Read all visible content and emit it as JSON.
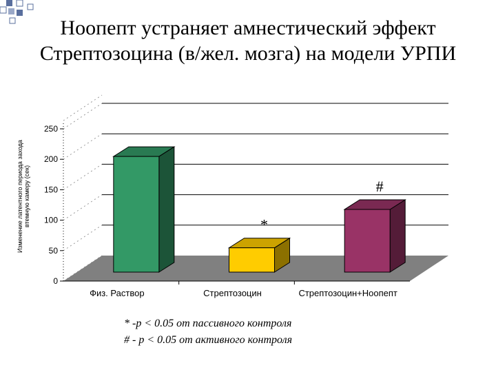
{
  "title_lines": [
    "Ноопепт устраняет амнестический эффект",
    "Стрептозоцина (в/жел. мозга) на модели УРПИ"
  ],
  "footnotes": [
    "* -p < 0.05 от пассивного контроля",
    "# - p < 0.05 от активного контроля"
  ],
  "colors": {
    "bars": [
      "#339966",
      "#ffcc00",
      "#993366"
    ],
    "floor": "#808080",
    "deco": "#5a6f9e"
  },
  "chart_data": {
    "type": "bar",
    "style": "3d",
    "categories": [
      "Физ. Раствор",
      "Стрептозоцин",
      "Стрептозоцин+Ноопепт"
    ],
    "values": [
      225,
      75,
      138
    ],
    "annotations": [
      "",
      "*",
      "#"
    ],
    "ylabel": "Изменение латентного периода захода втемную камеру (сек)",
    "ylim": [
      0,
      250
    ],
    "yticks": [
      0,
      50,
      100,
      150,
      200,
      250
    ],
    "grid": true
  }
}
